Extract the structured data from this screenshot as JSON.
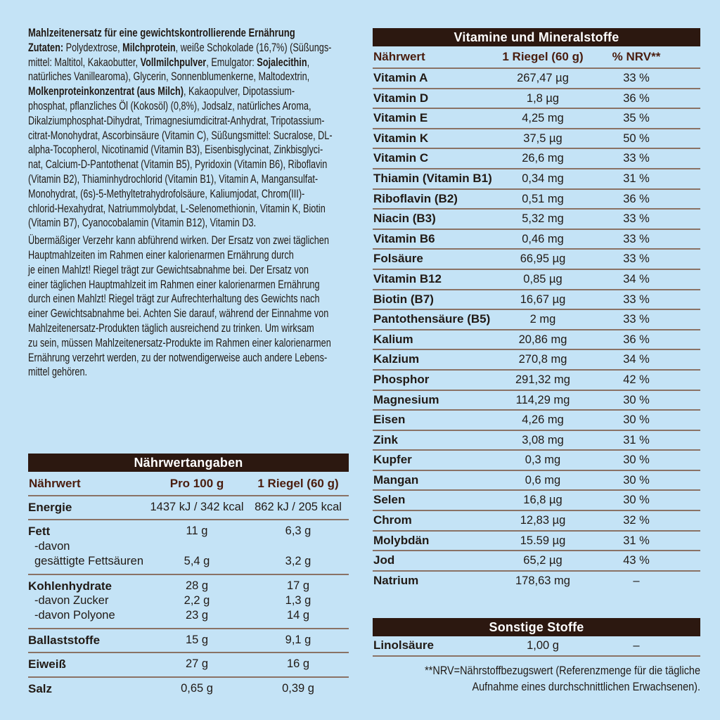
{
  "colors": {
    "background": "#c4e3f6",
    "bar_background": "#2c1810",
    "bar_text": "#ffffff",
    "column_header_text": "#4a1d0e",
    "body_text": "#211a15",
    "divider_line": "#8a7265"
  },
  "left": {
    "headline": "Mahlzeitenersatz für eine gewichtskontrollierende Ernährung",
    "ingredients_lines": [
      "**Zutaten:** Polydextrose, **Milchprotein**, weiße Schokolade (16,7%) (Süßungs-",
      "mittel: Maltitol, Kakaobutter, **Vollmilchpulver**, Emulgator: **Sojalecithin**,",
      "natürliches Vanillearoma), Glycerin, Sonnenblumenkerne, Maltodextrin,",
      "**Molkenproteinkonzentrat (aus Milch)**, Kakaopulver, Dipotassium-",
      "phosphat, pflanzliches Öl (Kokosöl) (0,8%), Jodsalz, natürliches Aroma,",
      "Dikalziumphosphat-Dihydrat, Trimagnesiumdicitrat-Anhydrat, Tripotassium-",
      "citrat-Monohydrat, Ascorbinsäure (Vitamin C), Süßungsmittel: Sucralose, DL-",
      "alpha-Tocopherol, Nicotinamid (Vitamin B3), Eisenbisglycinat, Zinkbisglyci-",
      "nat, Calcium-D-Pantothenat (Vitamin B5), Pyridoxin (Vitamin B6), Riboflavin",
      "(Vitamin B2), Thiaminhydrochlorid (Vitamin B1), Vitamin A, Mangansulfat-",
      "Monohydrat, (6s)-5-Methyltetrahydrofolsäure, Kaliumjodat, Chrom(III)-",
      "chlorid-Hexahydrat, Natriummolybdat, L-Selenomethionin, Vitamin K, Biotin",
      "(Vitamin B7), Cyanocobalamin (Vitamin B12), Vitamin D3."
    ],
    "usage_lines": [
      "Übermäßiger Verzehr kann abführend wirken. Der Ersatz von zwei täglichen",
      "Hauptmahlzeiten im Rahmen einer kalorienarmen Ernährung durch",
      "je einen Mahlzt! Riegel trägt zur Gewichtsabnahme bei. Der Ersatz von",
      "einer täglichen Hauptmahlzeit im Rahmen einer kalorienarmen Ernährung",
      "durch einen Mahlzt! Riegel trägt zur Aufrechterhaltung des Gewichts nach",
      "einer Gewichtsabnahme bei. Achten Sie darauf, während der Einnahme von",
      "Mahlzeitenersatz-Produkten täglich ausreichend zu trinken. Um wirksam",
      "zu sein, müssen Mahlzeitenersatz-Produkte im Rahmen einer kalorienarmen",
      "Ernährung verzehrt werden, zu der notwendigerweise auch andere Lebens-",
      "mittel gehören."
    ],
    "nutrition_table": {
      "title": "Nährwertangaben",
      "columns": [
        "Nährwert",
        "Pro 100 g",
        "1 Riegel (60 g)"
      ],
      "rows": [
        {
          "name": "Energie",
          "v1": "1437 kJ / 342 kcal",
          "v2": "862 kJ / 205 kcal",
          "sub": []
        },
        {
          "name": "Fett",
          "v1": "11 g",
          "v2": "6,3 g",
          "sub": [
            {
              "name": "-davon",
              "v1": "",
              "v2": ""
            },
            {
              "name": "gesättigte Fettsäuren",
              "v1": "5,4 g",
              "v2": "3,2 g"
            }
          ]
        },
        {
          "name": "Kohlenhydrate",
          "v1": "28 g",
          "v2": "17 g",
          "sub": [
            {
              "name": "-davon Zucker",
              "v1": "2,2 g",
              "v2": "1,3 g"
            },
            {
              "name": "-davon Polyone",
              "v1": "23 g",
              "v2": "14 g"
            }
          ]
        },
        {
          "name": "Ballaststoffe",
          "v1": "15 g",
          "v2": "9,1 g",
          "sub": []
        },
        {
          "name": "Eiweiß",
          "v1": "27 g",
          "v2": "16 g",
          "sub": []
        },
        {
          "name": "Salz",
          "v1": "0,65 g",
          "v2": "0,39 g",
          "sub": []
        }
      ]
    }
  },
  "right": {
    "vitamins_table": {
      "title": "Vitamine und Mineralstoffe",
      "columns": [
        "Nährwert",
        "1 Riegel (60 g)",
        "% NRV**"
      ],
      "rows": [
        [
          "Vitamin A",
          "267,47 µg",
          "33 %"
        ],
        [
          "Vitamin D",
          "1,8 µg",
          "36 %"
        ],
        [
          "Vitamin E",
          "4,25 mg",
          "35 %"
        ],
        [
          "Vitamin K",
          "37,5 µg",
          "50 %"
        ],
        [
          "Vitamin C",
          "26,6 mg",
          "33 %"
        ],
        [
          "Thiamin (Vitamin B1)",
          "0,34 mg",
          "31 %"
        ],
        [
          "Riboflavin (B2)",
          "0,51 mg",
          "36 %"
        ],
        [
          "Niacin (B3)",
          "5,32 mg",
          "33 %"
        ],
        [
          "Vitamin B6",
          "0,46 mg",
          "33 %"
        ],
        [
          "Folsäure",
          "66,95 µg",
          "33 %"
        ],
        [
          "Vitamin B12",
          "0,85 µg",
          "34 %"
        ],
        [
          "Biotin (B7)",
          "16,67 µg",
          "33 %"
        ],
        [
          "Pantothensäure (B5)",
          "2 mg",
          "33 %"
        ],
        [
          "Kalium",
          "20,86 mg",
          "36 %"
        ],
        [
          "Kalzium",
          "270,8 mg",
          "34 %"
        ],
        [
          "Phosphor",
          "291,32 mg",
          "42 %"
        ],
        [
          "Magnesium",
          "114,29 mg",
          "30 %"
        ],
        [
          "Eisen",
          "4,26 mg",
          "30 %"
        ],
        [
          "Zink",
          "3,08 mg",
          "31 %"
        ],
        [
          "Kupfer",
          "0,3 mg",
          "30 %"
        ],
        [
          "Mangan",
          "0,6 mg",
          "30 %"
        ],
        [
          "Selen",
          "16,8 µg",
          "30 %"
        ],
        [
          "Chrom",
          "12,83 µg",
          "32 %"
        ],
        [
          "Molybdän",
          "15.59 µg",
          "31 %"
        ],
        [
          "Jod",
          "65,2 µg",
          "43 %"
        ],
        [
          "Natrium",
          "178,63 mg",
          "–"
        ]
      ]
    },
    "other_table": {
      "title": "Sonstige Stoffe",
      "rows": [
        [
          "Linolsäure",
          "1,00 g",
          "–"
        ]
      ]
    },
    "footnote_lines": [
      "**NRV=Nährstoffbezugswert (Referenzmenge für die tägliche",
      "Aufnahme eines durchschnittlichen Erwachsenen)."
    ]
  }
}
